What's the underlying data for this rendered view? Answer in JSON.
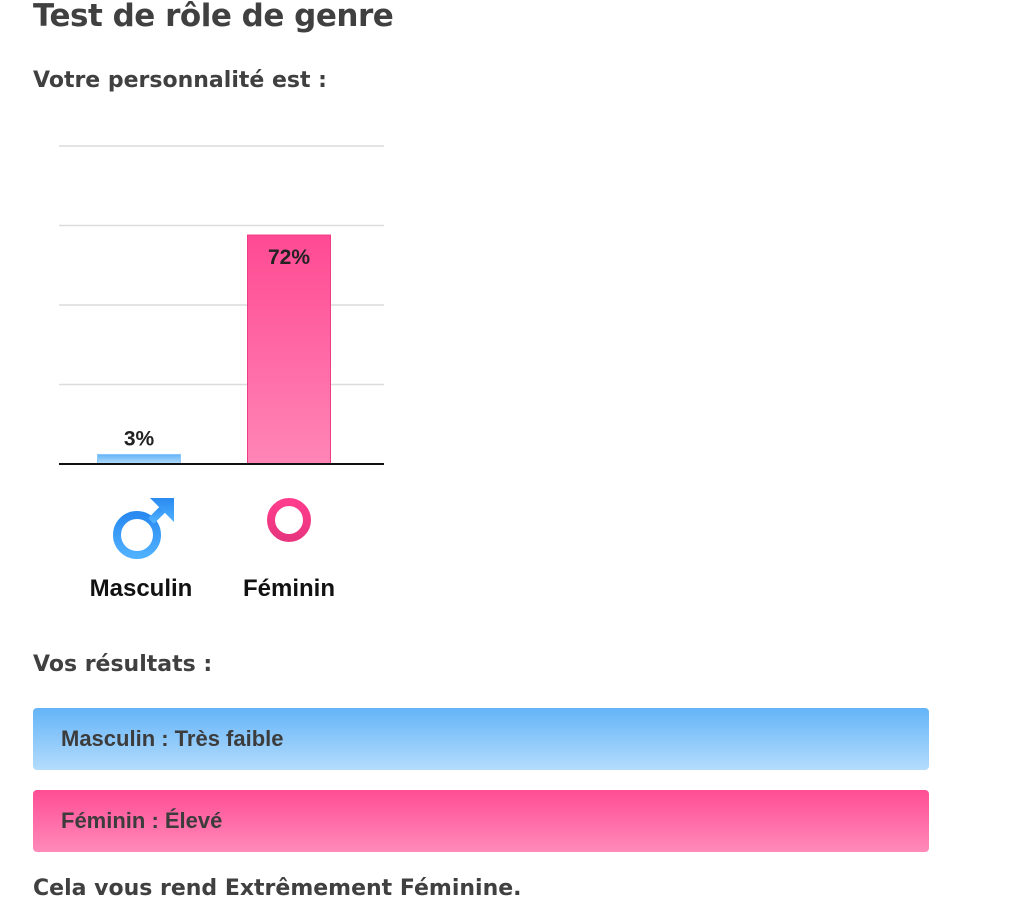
{
  "header": {
    "title": "Test de rôle de genre",
    "subtitle": "Votre personnalité est :"
  },
  "chart_data": {
    "type": "bar",
    "categories": [
      "Masculin",
      "Féminin"
    ],
    "values": [
      3,
      72
    ],
    "value_labels": [
      "3%",
      "72%"
    ],
    "ylim": [
      0,
      100
    ],
    "grid": true,
    "icons": [
      "male-symbol-icon",
      "female-symbol-icon"
    ],
    "colors": {
      "masculin": "#64b4f8",
      "feminin": "#ff4d94"
    }
  },
  "results": {
    "title": "Vos résultats :",
    "items": [
      {
        "label": "Masculin : Très faible",
        "color": "#64b4f8"
      },
      {
        "label": "Féminin : Élevé",
        "color": "#ff4d94"
      }
    ]
  },
  "conclusion": "Cela vous rend Extrêmement Féminine."
}
